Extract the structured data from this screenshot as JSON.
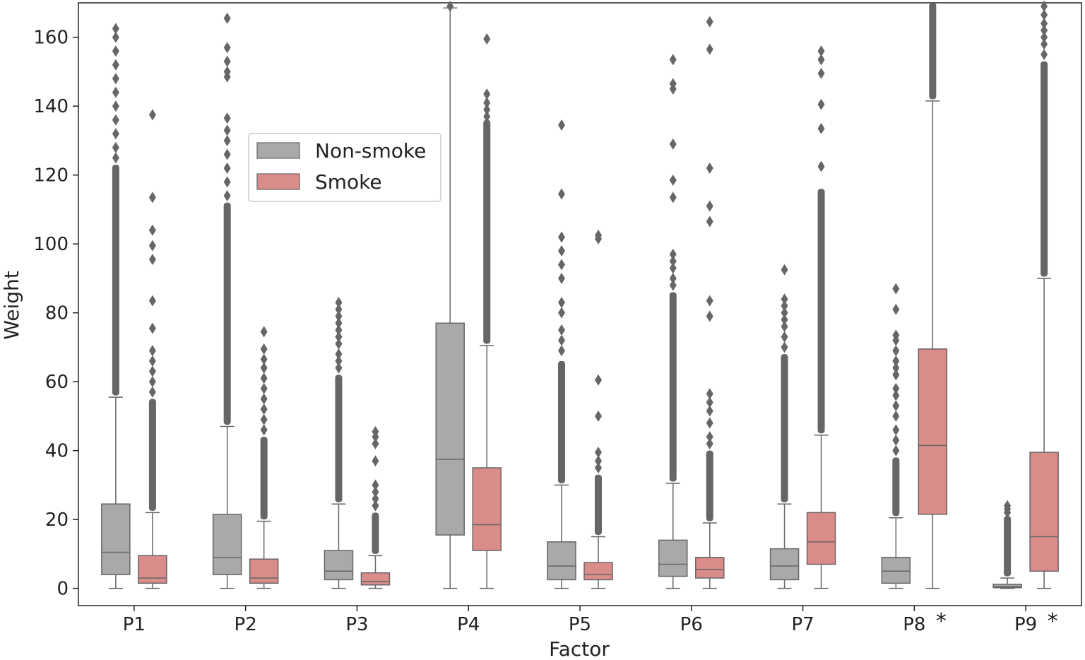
{
  "chart_data": {
    "type": "box",
    "xlabel": "Factor",
    "ylabel": "Weight",
    "ylim": [
      -5,
      170
    ],
    "yticks": [
      0,
      20,
      40,
      60,
      80,
      100,
      120,
      140,
      160
    ],
    "categories": [
      "P1",
      "P2",
      "P3",
      "P4",
      "P5",
      "P6",
      "P7",
      "P8",
      "P9"
    ],
    "significance_marks": {
      "P8": "*",
      "P9": "*"
    },
    "colors": {
      "Non-smoke": "#a9a9a9",
      "Smoke": "#d98c8a",
      "line": "#666666"
    },
    "legend": {
      "position": "upper-left",
      "entries": [
        "Non-smoke",
        "Smoke"
      ]
    },
    "series": [
      {
        "name": "Non-smoke",
        "boxes": [
          {
            "min": 0,
            "q1": 4,
            "median": 10.5,
            "q3": 24.5,
            "max": 55.5,
            "fliers": {
              "dense": [
                56,
                123
              ],
              "sparse": [
                125,
                128,
                132,
                136,
                140,
                144,
                148,
                152,
                156,
                160,
                162.5
              ]
            }
          },
          {
            "min": 0,
            "q1": 4,
            "median": 9,
            "q3": 21.5,
            "max": 47,
            "fliers": {
              "dense": [
                47.5,
                112
              ],
              "sparse": [
                114,
                118,
                122,
                126,
                130,
                133,
                136.5,
                148.5,
                150,
                153,
                157,
                165.5
              ]
            }
          },
          {
            "min": 0,
            "q1": 2.5,
            "median": 5,
            "q3": 11,
            "max": 24.5,
            "fliers": {
              "dense": [
                25,
                62
              ],
              "sparse": [
                64,
                66,
                68,
                71,
                73,
                75,
                77,
                79,
                81,
                83
              ]
            }
          },
          {
            "min": 0,
            "q1": 15.5,
            "median": 37.5,
            "q3": 77,
            "max": 168.5,
            "fliers": {
              "dense": [],
              "sparse": [
                169
              ]
            }
          },
          {
            "min": 0,
            "q1": 2.5,
            "median": 6.5,
            "q3": 13.5,
            "max": 30,
            "fliers": {
              "dense": [
                30.5,
                66
              ],
              "sparse": [
                69,
                72,
                75,
                80,
                83,
                90,
                94,
                98,
                102,
                114.5,
                134.5
              ]
            }
          },
          {
            "min": 0,
            "q1": 3.5,
            "median": 7,
            "q3": 14,
            "max": 30.5,
            "fliers": {
              "dense": [
                31,
                86
              ],
              "sparse": [
                88,
                90,
                93,
                95,
                97,
                113.5,
                118.5,
                129,
                145,
                146.5,
                153.5
              ]
            }
          },
          {
            "min": 0,
            "q1": 2.5,
            "median": 6.5,
            "q3": 11.5,
            "max": 24.5,
            "fliers": {
              "dense": [
                25,
                68
              ],
              "sparse": [
                70,
                73,
                76,
                78,
                80,
                82,
                84,
                92.5
              ]
            }
          },
          {
            "min": 0,
            "q1": 1.5,
            "median": 5,
            "q3": 9,
            "max": 20.5,
            "fliers": {
              "dense": [
                21,
                38
              ],
              "sparse": [
                40,
                43,
                46,
                50,
                53,
                56,
                58,
                62,
                64,
                66,
                69,
                72,
                73.5,
                81,
                87
              ]
            }
          },
          {
            "min": 0,
            "q1": 0.2,
            "median": 0.5,
            "q3": 1.2,
            "max": 3,
            "fliers": {
              "dense": [
                3.5,
                21
              ],
              "sparse": [
                22,
                23,
                24
              ]
            }
          }
        ]
      },
      {
        "name": "Smoke",
        "boxes": [
          {
            "min": 0,
            "q1": 1.5,
            "median": 3,
            "q3": 9.5,
            "max": 22,
            "fliers": {
              "dense": [
                22.5,
                55
              ],
              "sparse": [
                57,
                60,
                63,
                66,
                69,
                75.5,
                83.5,
                95.5,
                99.5,
                104,
                113.5,
                137.5
              ]
            }
          },
          {
            "min": 0,
            "q1": 1.5,
            "median": 3,
            "q3": 8.5,
            "max": 19.5,
            "fliers": {
              "dense": [
                20,
                44
              ],
              "sparse": [
                46,
                49,
                52,
                55,
                58,
                61,
                64,
                66.5,
                69.5,
                74.5
              ]
            }
          },
          {
            "min": 0,
            "q1": 1,
            "median": 2,
            "q3": 4.5,
            "max": 9.5,
            "fliers": {
              "dense": [
                10,
                22
              ],
              "sparse": [
                24,
                26,
                28,
                30,
                37,
                42,
                44,
                45.5
              ]
            }
          },
          {
            "min": 0,
            "q1": 11,
            "median": 18.5,
            "q3": 35,
            "max": 70.5,
            "fliers": {
              "dense": [
                71,
                136
              ],
              "sparse": [
                137,
                139,
                141,
                143.5,
                159.5
              ]
            }
          },
          {
            "min": 0,
            "q1": 2.5,
            "median": 4,
            "q3": 7.5,
            "max": 15,
            "fliers": {
              "dense": [
                15.5,
                33
              ],
              "sparse": [
                35,
                37,
                39.5,
                50,
                60.5,
                101.5,
                102.5
              ]
            }
          },
          {
            "min": 0,
            "q1": 3,
            "median": 5.5,
            "q3": 9,
            "max": 19,
            "fliers": {
              "dense": [
                19.5,
                40
              ],
              "sparse": [
                42,
                44,
                48,
                51.5,
                54,
                56.5,
                79,
                83.5,
                106.5,
                111,
                122,
                156.5,
                164.5
              ]
            }
          },
          {
            "min": 0,
            "q1": 7,
            "median": 13.5,
            "q3": 22,
            "max": 44.5,
            "fliers": {
              "dense": [
                45,
                116
              ],
              "sparse": [
                122.5,
                133.5,
                140.5,
                149.5,
                153.5,
                156
              ]
            }
          },
          {
            "min": 0,
            "q1": 21.5,
            "median": 41.5,
            "q3": 69.5,
            "max": 141.5,
            "fliers": {
              "dense": [
                142,
                170
              ],
              "sparse": []
            }
          },
          {
            "min": 0,
            "q1": 5,
            "median": 15,
            "q3": 39.5,
            "max": 90,
            "fliers": {
              "dense": [
                90.5,
                153
              ],
              "sparse": [
                155,
                158,
                160,
                162,
                164,
                166.5,
                169
              ]
            }
          }
        ]
      }
    ]
  }
}
